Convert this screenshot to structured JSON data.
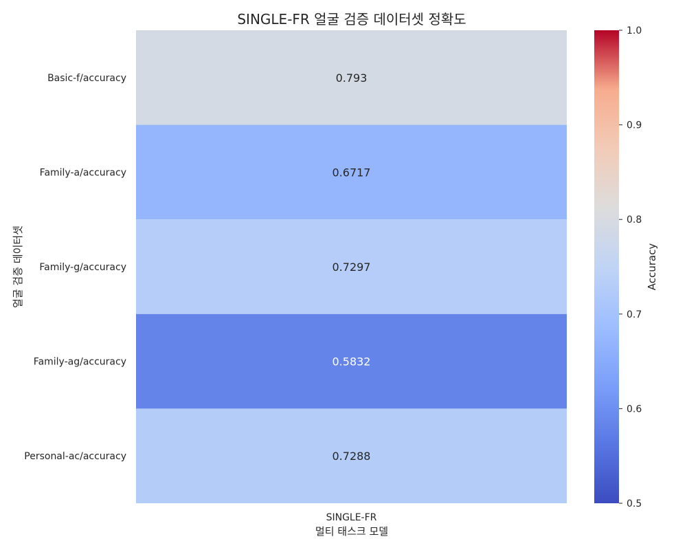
{
  "chart_data": {
    "type": "heatmap",
    "title": "SINGLE-FR 얼굴 검증 데이터셋 정확도",
    "xlabel": "멀티 태스크 모델",
    "ylabel": "얼굴 검증 데이터셋",
    "columns": [
      "SINGLE-FR"
    ],
    "rows": [
      "Basic-f/accuracy",
      "Family-a/accuracy",
      "Family-g/accuracy",
      "Family-ag/accuracy",
      "Personal-ac/accuracy"
    ],
    "values": [
      [
        0.793
      ],
      [
        0.6717
      ],
      [
        0.7297
      ],
      [
        0.5832
      ],
      [
        0.7288
      ]
    ],
    "value_labels": [
      "0.793",
      "0.6717",
      "0.7297",
      "0.5832",
      "0.7288"
    ],
    "colormap": "coolwarm",
    "vmin": 0.5,
    "vmax": 1.0,
    "colorbar": {
      "label": "Accuracy",
      "ticks": [
        0.5,
        0.6,
        0.7,
        0.8,
        0.9,
        1.0
      ],
      "tick_labels": [
        "0.5",
        "0.6",
        "0.7",
        "0.8",
        "0.9",
        "1.0"
      ]
    }
  }
}
